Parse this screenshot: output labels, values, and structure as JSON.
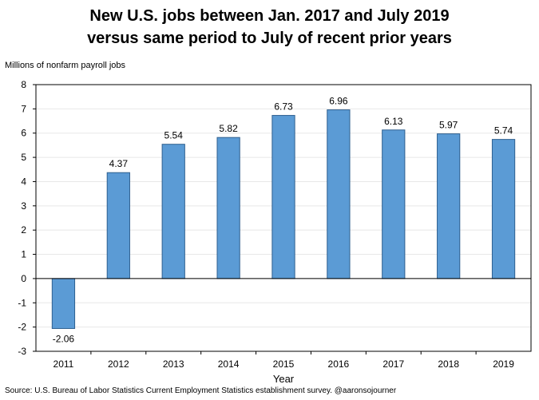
{
  "chart_data": {
    "type": "bar",
    "title_line1": "New U.S. jobs between Jan. 2017 and July 2019",
    "title_line2": "versus same period to July of recent prior years",
    "ylabel": "Millions of nonfarm payroll jobs",
    "xlabel": "Year",
    "categories": [
      "2011",
      "2012",
      "2013",
      "2014",
      "2015",
      "2016",
      "2017",
      "2018",
      "2019"
    ],
    "values": [
      -2.06,
      4.37,
      5.54,
      5.82,
      6.73,
      6.96,
      6.13,
      5.97,
      5.74
    ],
    "value_labels": [
      "-2.06",
      "4.37",
      "5.54",
      "5.82",
      "6.73",
      "6.96",
      "6.13",
      "5.97",
      "5.74"
    ],
    "ylim": [
      -3,
      8
    ],
    "yticks": [
      "-3",
      "-2",
      "-1",
      "0",
      "1",
      "2",
      "3",
      "4",
      "5",
      "6",
      "7",
      "8"
    ],
    "bar_color": "#5b9bd5",
    "bar_edge_color": "#2e5f8f",
    "grid": true,
    "source": "Source: U.S. Bureau of Labor Statistics Current Employment Statistics establishment survey. @aaronsojourner"
  }
}
